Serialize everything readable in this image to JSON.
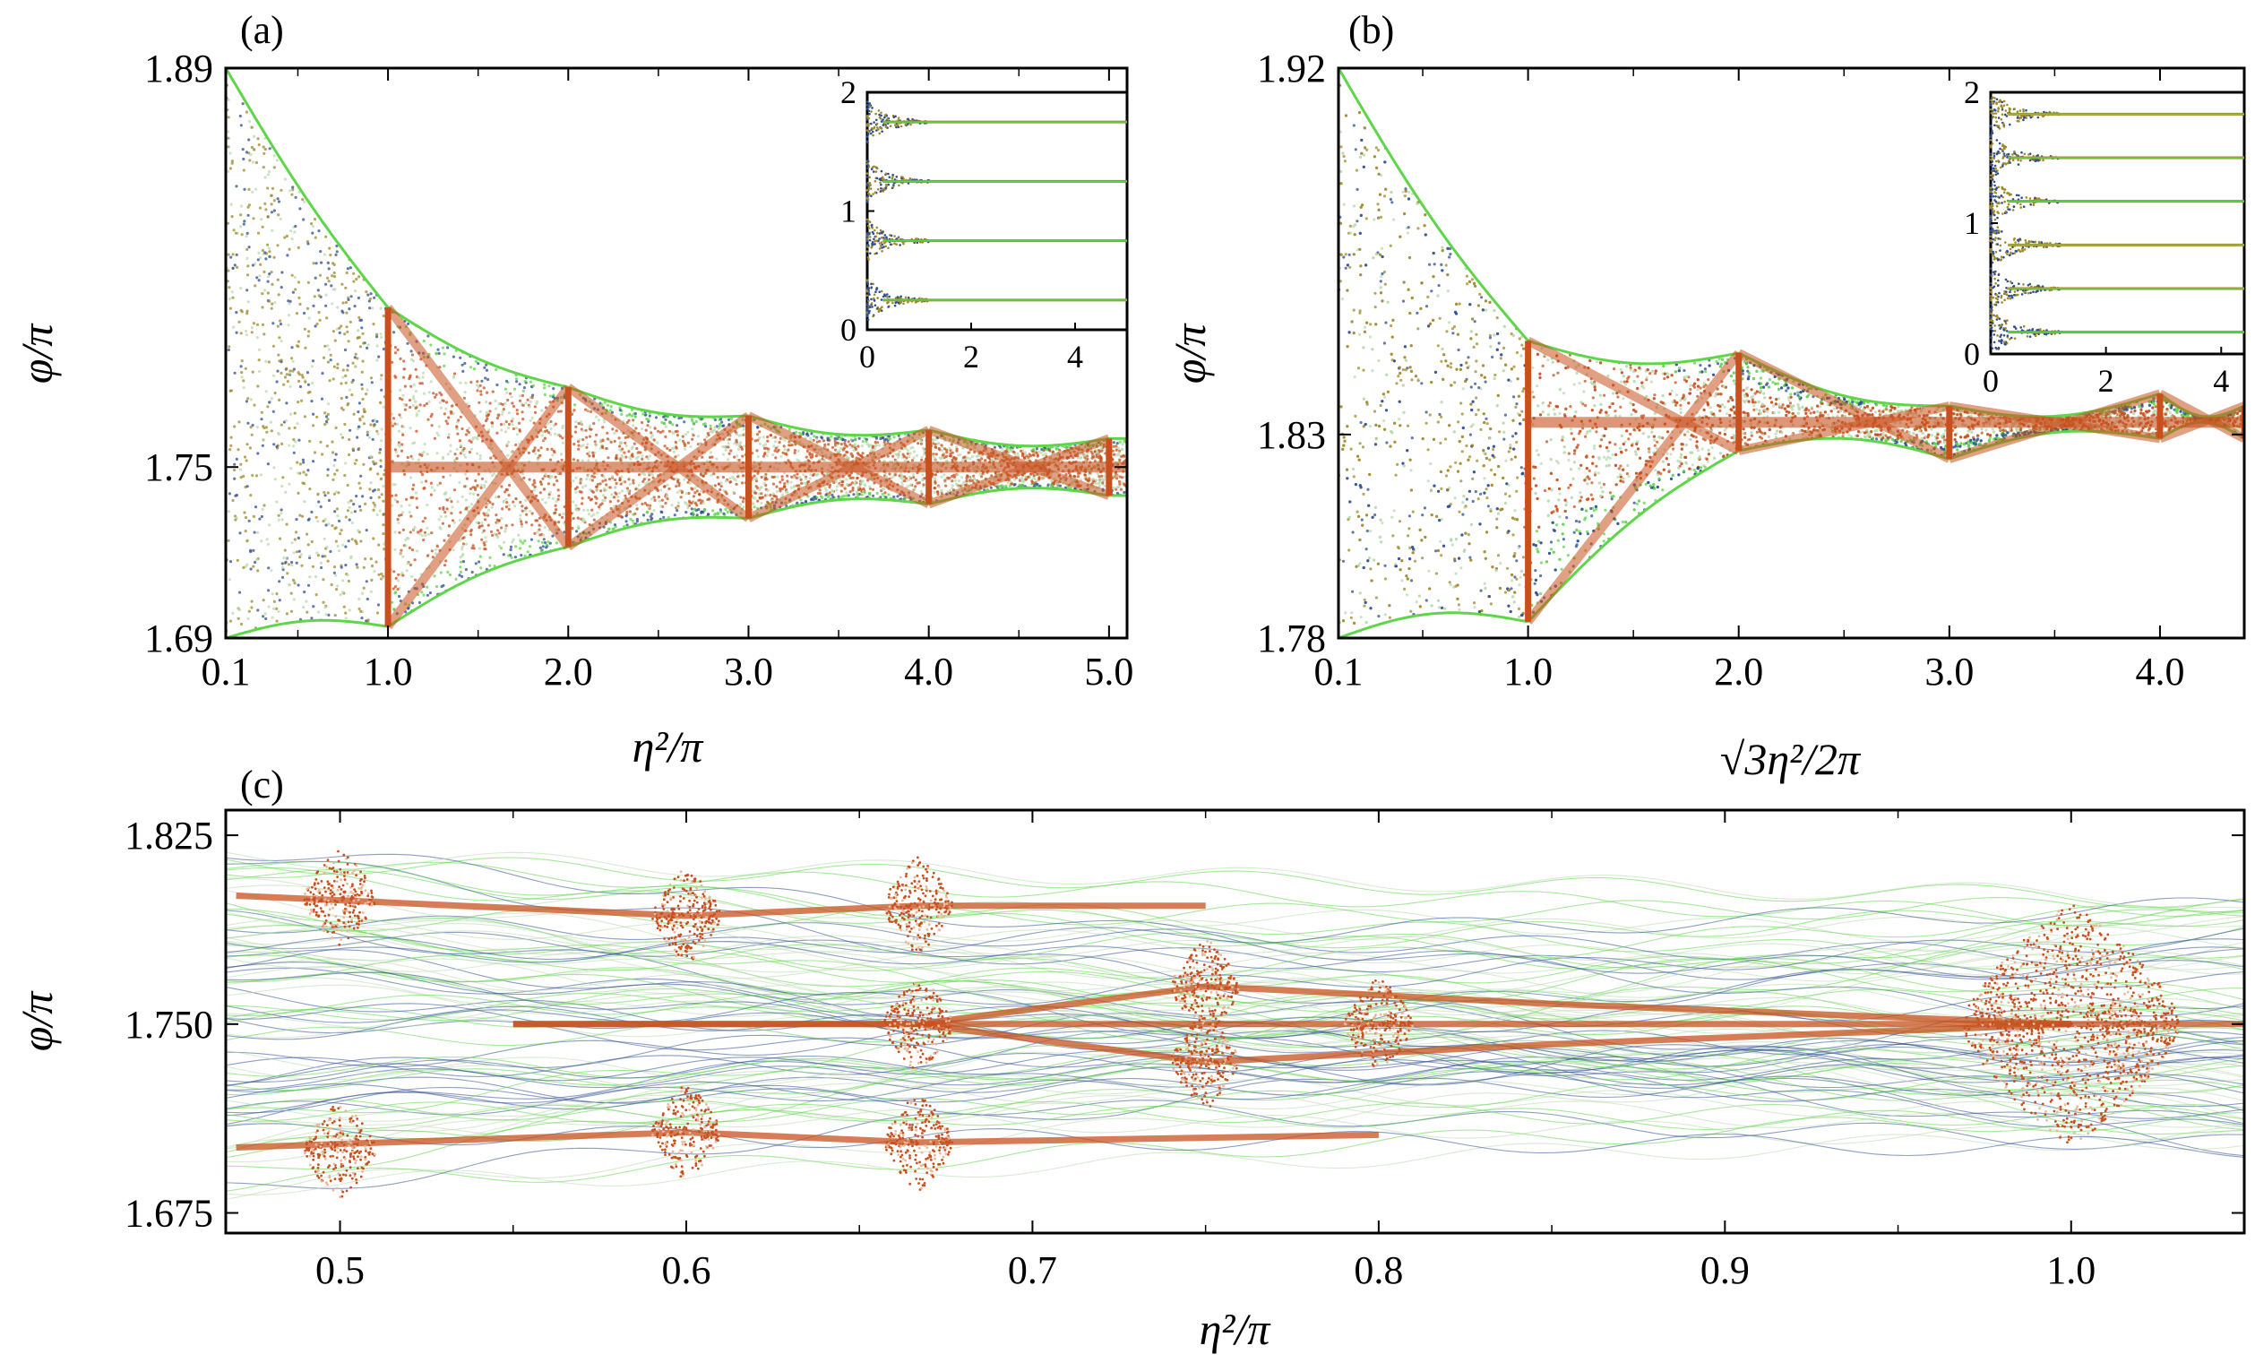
{
  "chart_data": [
    {
      "panel": "(a)",
      "type": "scatter",
      "xlabel": "η²/π",
      "ylabel": "φ/π",
      "xlim": [
        0.1,
        5.1
      ],
      "ylim": [
        1.69,
        1.89
      ],
      "xticks": [
        0.1,
        1.0,
        2.0,
        3.0,
        4.0,
        5.0
      ],
      "xtick_labels": [
        "0.1",
        "1.0",
        "2.0",
        "3.0",
        "4.0",
        "5.0"
      ],
      "yticks": [
        1.69,
        1.75,
        1.89
      ],
      "ytick_labels": [
        "1.69",
        "1.75",
        "1.89"
      ],
      "series": [
        {
          "name": "cusp envelope",
          "x": [
            0.1,
            1.0,
            2.0,
            3.0,
            4.0,
            5.0
          ],
          "y_upper": [
            1.89,
            1.806,
            1.778,
            1.768,
            1.763,
            1.76
          ],
          "y_lower": [
            1.69,
            1.694,
            1.722,
            1.732,
            1.737,
            1.74
          ],
          "center": 1.75
        }
      ],
      "inset": {
        "xlim": [
          0,
          5
        ],
        "ylim": [
          0,
          2
        ],
        "xtick_labels": [
          "0",
          "2",
          "4"
        ],
        "ytick_labels": [
          "0",
          "1",
          "2"
        ],
        "bands": [
          0.25,
          0.75,
          1.25,
          1.75
        ]
      }
    },
    {
      "panel": "(b)",
      "type": "scatter",
      "xlabel": "√3η²/2π",
      "ylabel": "φ/π",
      "xlim": [
        0.1,
        4.4
      ],
      "ylim": [
        1.78,
        1.92
      ],
      "xticks": [
        0.1,
        1.0,
        2.0,
        3.0,
        4.0
      ],
      "xtick_labels": [
        "0.1",
        "1.0",
        "2.0",
        "3.0",
        "4.0"
      ],
      "yticks": [
        1.78,
        1.83,
        1.92
      ],
      "ytick_labels": [
        "1.78",
        "1.83",
        "1.92"
      ],
      "series": [
        {
          "name": "cusp envelope",
          "x": [
            0.1,
            1.0,
            2.0,
            3.0,
            4.0,
            4.4
          ],
          "y_upper": [
            1.92,
            1.853,
            1.85,
            1.837,
            1.84,
            1.837
          ],
          "y_lower": [
            1.78,
            1.784,
            1.826,
            1.824,
            1.829,
            1.829
          ],
          "center": 1.833
        }
      ],
      "inset": {
        "xlim": [
          0,
          4.4
        ],
        "ylim": [
          0,
          2
        ],
        "xtick_labels": [
          "0",
          "2",
          "4"
        ],
        "ytick_labels": [
          "0",
          "1",
          "2"
        ],
        "bands": [
          0.1667,
          0.5,
          0.8333,
          1.1667,
          1.5,
          1.8333
        ]
      }
    },
    {
      "panel": "(c)",
      "type": "scatter",
      "xlabel": "η²/π",
      "ylabel": "φ/π",
      "xlim": [
        0.467,
        1.05
      ],
      "ylim": [
        1.667,
        1.835
      ],
      "xticks": [
        0.5,
        0.6,
        0.7,
        0.8,
        0.9,
        1.0
      ],
      "xtick_labels": [
        "0.5",
        "0.6",
        "0.7",
        "0.8",
        "0.9",
        "1.0"
      ],
      "yticks": [
        1.675,
        1.75,
        1.825
      ],
      "ytick_labels": [
        "1.675",
        "1.750",
        "1.825"
      ],
      "series": [
        {
          "name": "dense nodes",
          "x": [
            0.5,
            0.5,
            0.6,
            0.6,
            0.667,
            0.667,
            0.667,
            0.75,
            0.75,
            0.8,
            1.0
          ],
          "y": [
            1.8,
            1.7,
            1.793,
            1.707,
            1.797,
            1.75,
            1.703,
            1.765,
            1.735,
            1.75,
            1.75
          ]
        }
      ]
    }
  ]
}
